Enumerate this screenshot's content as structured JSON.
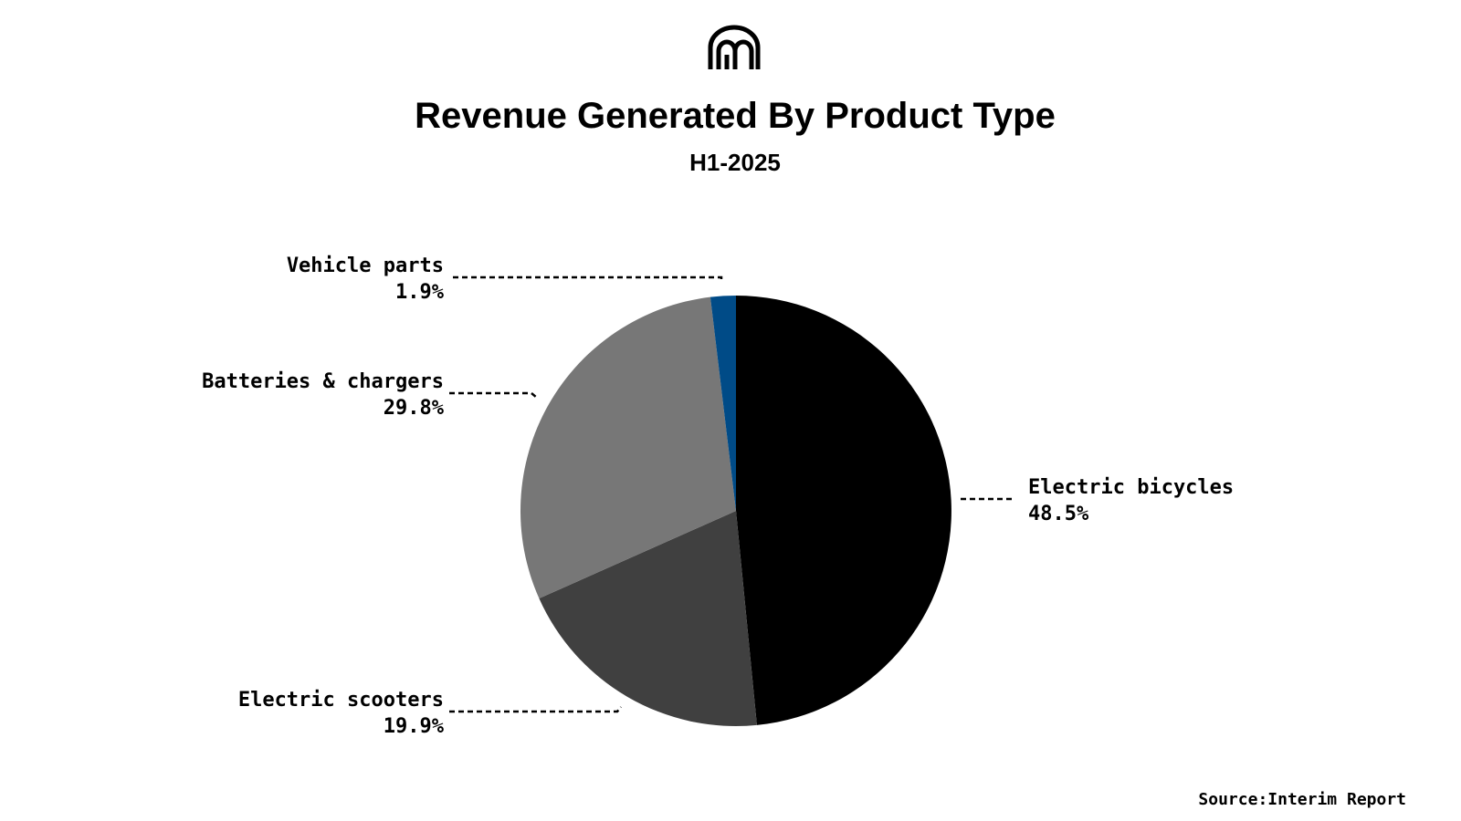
{
  "header": {
    "title": "Revenue Generated By Product Type",
    "subtitle": "H1-2025",
    "logo_icon": "m-arch-logo-icon"
  },
  "footer": {
    "source": "Source:Interim Report"
  },
  "chart_data": {
    "type": "pie",
    "title": "Revenue Generated By Product Type",
    "subtitle": "H1-2025",
    "start": "12 o'clock",
    "direction": "clockwise",
    "slices": [
      {
        "label": "Electric bicycles",
        "value": 48.5,
        "display": "48.5%",
        "color": "#000000"
      },
      {
        "label": "Electric scooters",
        "value": 19.9,
        "display": "19.9%",
        "color": "#404040"
      },
      {
        "label": "Batteries & chargers",
        "value": 29.8,
        "display": "29.8%",
        "color": "#777777"
      },
      {
        "label": "Vehicle parts",
        "value": 1.9,
        "display": "1.9%",
        "color": "#004b87"
      }
    ]
  }
}
